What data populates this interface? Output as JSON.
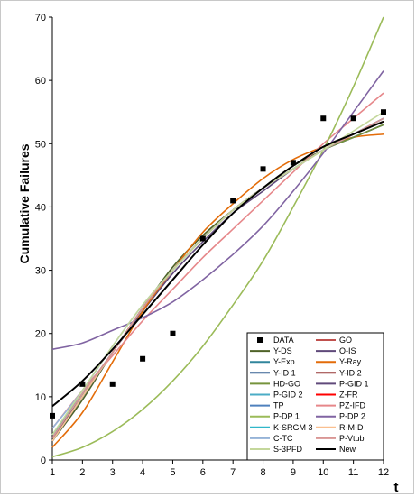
{
  "chart_data": {
    "type": "line",
    "title": "",
    "xlabel": "t",
    "ylabel": "Cumulative Failures",
    "xlim": [
      1,
      12
    ],
    "ylim": [
      0,
      70
    ],
    "x_ticks": [
      1,
      2,
      3,
      4,
      5,
      6,
      7,
      8,
      9,
      10,
      11,
      12
    ],
    "y_ticks": [
      0,
      10,
      20,
      30,
      40,
      50,
      60,
      70
    ],
    "grid": false,
    "legend_position": "bottom-right",
    "x": [
      1,
      2,
      3,
      4,
      5,
      6,
      7,
      8,
      9,
      10,
      11,
      12
    ],
    "data_points": {
      "name": "DATA",
      "x": [
        1,
        2,
        3,
        4,
        5,
        6,
        7,
        8,
        9,
        10,
        11,
        12
      ],
      "y": [
        7,
        12,
        12,
        16,
        20,
        35,
        41,
        46,
        47,
        54,
        54,
        55
      ]
    },
    "series": [
      {
        "name": "GO",
        "color": "#c0504d",
        "values": [
          3,
          10,
          17,
          24,
          30,
          35,
          39.5,
          43,
          46,
          49,
          51,
          53
        ]
      },
      {
        "name": "Y-DS",
        "color": "#4f6228",
        "values": [
          3,
          9.5,
          17,
          24,
          30.5,
          35.5,
          39.5,
          43,
          46.5,
          49,
          51.5,
          53.5
        ]
      },
      {
        "name": "O-IS",
        "color": "#5f497a",
        "values": [
          3.5,
          10,
          17,
          23.5,
          29.5,
          34.5,
          39,
          42.5,
          46,
          49,
          51.5,
          53.5
        ]
      },
      {
        "name": "Y-Exp",
        "color": "#31859c",
        "values": [
          3,
          10,
          17,
          24,
          30,
          35,
          39.5,
          43,
          46,
          49,
          51,
          53
        ]
      },
      {
        "name": "Y-Ray",
        "color": "#e36c09",
        "values": [
          2,
          7.5,
          15.5,
          23.5,
          30,
          36,
          40.5,
          44.5,
          47.5,
          49.5,
          51,
          51.5
        ]
      },
      {
        "name": "Y-ID 1",
        "color": "#376092",
        "values": [
          3,
          10,
          17,
          24,
          30,
          35,
          39.5,
          43,
          46,
          49,
          51,
          53
        ]
      },
      {
        "name": "Y-ID 2",
        "color": "#953735",
        "values": [
          3,
          10,
          17,
          24,
          30,
          35,
          39.5,
          43,
          46,
          49,
          51.5,
          53.5
        ]
      },
      {
        "name": "HD-GO",
        "color": "#76933c",
        "values": [
          3,
          10,
          17,
          24,
          30,
          35,
          39.5,
          43,
          46,
          49,
          51,
          53
        ]
      },
      {
        "name": "P-GID 1",
        "color": "#604a7b",
        "values": [
          3,
          10,
          17,
          24,
          30,
          35,
          39.5,
          43,
          46,
          49,
          51.5,
          53.5
        ]
      },
      {
        "name": "P-GID 2",
        "color": "#4bacc6",
        "values": [
          3,
          10,
          17,
          24,
          30,
          35,
          39.5,
          43,
          46,
          49,
          51.5,
          54
        ]
      },
      {
        "name": "Z-FR",
        "color": "#ff0000",
        "values": [
          3.5,
          10.5,
          17,
          24,
          30,
          35,
          39.5,
          43,
          46,
          49,
          51.5,
          53.5
        ]
      },
      {
        "name": "TP",
        "color": "#4f81bd",
        "values": [
          3.5,
          10.5,
          17,
          24,
          30,
          35,
          39.5,
          43,
          46,
          49,
          51.5,
          54
        ]
      },
      {
        "name": "PZ-IFD",
        "color": "#e6878a",
        "values": [
          5,
          11,
          16.5,
          22,
          27,
          32,
          36.5,
          41,
          45.5,
          50,
          54,
          58
        ]
      },
      {
        "name": "P-DP 1",
        "color": "#9bbb59",
        "values": [
          0.5,
          2,
          4.5,
          8,
          12.5,
          18,
          24.5,
          31.5,
          40,
          49,
          59,
          70
        ]
      },
      {
        "name": "P-DP 2",
        "color": "#8064a2",
        "values": [
          17.5,
          18.5,
          20.5,
          22.5,
          25,
          28.5,
          32.5,
          37,
          42.5,
          48.5,
          55,
          61.5
        ]
      },
      {
        "name": "K-SRGM 3",
        "color": "#31b7c9",
        "values": [
          4,
          10.5,
          17,
          24,
          30,
          35,
          39.5,
          43,
          46,
          49,
          51.5,
          54
        ]
      },
      {
        "name": "R-M-D",
        "color": "#fabf8f",
        "values": [
          3,
          10,
          17,
          24,
          30,
          35,
          39.5,
          43,
          46,
          49,
          51.5,
          53.5
        ]
      },
      {
        "name": "C-TC",
        "color": "#95b3d7",
        "values": [
          5,
          11,
          18,
          24.5,
          30,
          35,
          39.5,
          43,
          46,
          49,
          51.5,
          54
        ]
      },
      {
        "name": "P-Vtub",
        "color": "#d99694",
        "values": [
          3.5,
          10.5,
          17,
          24,
          30,
          35,
          39.5,
          43,
          46,
          49,
          51.5,
          54
        ]
      },
      {
        "name": "S-3PFD",
        "color": "#c4d79b",
        "values": [
          4,
          11,
          18,
          24.5,
          30,
          35,
          39.5,
          43,
          46,
          49,
          52,
          55
        ]
      },
      {
        "name": "New",
        "color": "#000000",
        "values": [
          8.5,
          12.5,
          17.5,
          23,
          28.5,
          34,
          39,
          43,
          46.5,
          49.5,
          51.5,
          53.5
        ]
      }
    ],
    "legend_entries": [
      "DATA",
      "GO",
      "Y-DS",
      "O-IS",
      "Y-Exp",
      "Y-Ray",
      "Y-ID 1",
      "Y-ID 2",
      "HD-GO",
      "P-GID 1",
      "P-GID 2",
      "Z-FR",
      "TP",
      "PZ-IFD",
      "P-DP 1",
      "P-DP 2",
      "K-SRGM 3",
      "R-M-D",
      "C-TC",
      "P-Vtub",
      "S-3PFD",
      "New"
    ]
  }
}
